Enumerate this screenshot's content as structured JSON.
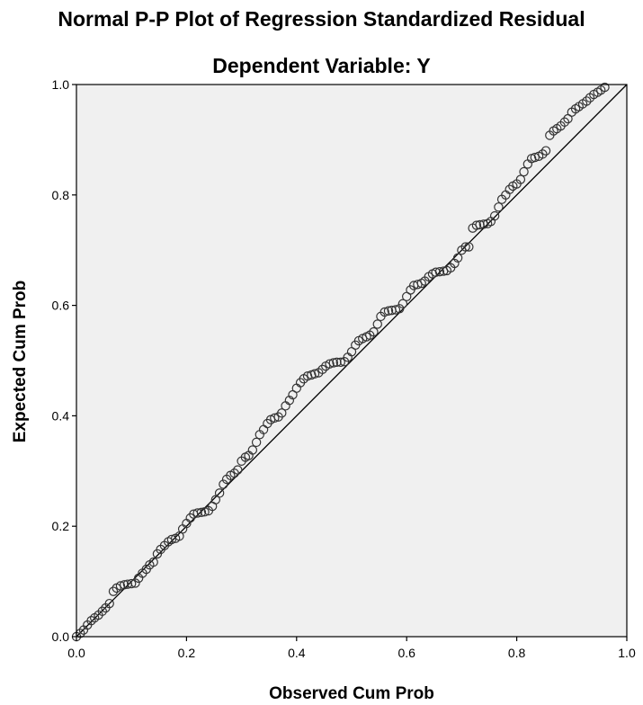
{
  "chart_data": {
    "type": "scatter",
    "title": "Normal P-P Plot of Regression Standardized Residual",
    "subtitle": "Dependent Variable: Y",
    "xlabel": "Observed Cum Prob",
    "ylabel": "Expected Cum Prob",
    "xlim": [
      0,
      1
    ],
    "ylim": [
      0,
      1
    ],
    "xticks": [
      0.0,
      0.2,
      0.4,
      0.6,
      0.8,
      1.0
    ],
    "yticks": [
      0.0,
      0.2,
      0.4,
      0.6,
      0.8,
      1.0
    ],
    "xtick_labels": [
      "0.0",
      "0.2",
      "0.4",
      "0.6",
      "0.8",
      "1.0"
    ],
    "ytick_labels": [
      "0.0",
      "0.2",
      "0.4",
      "0.6",
      "0.8",
      "1.0"
    ],
    "grid": false,
    "background_color": "#f0f0f0",
    "marker_color": "#333333",
    "line_color": "#000000",
    "reference_line": {
      "x": [
        0,
        1
      ],
      "y": [
        0,
        1
      ]
    },
    "points": [
      [
        0.0,
        0.0
      ],
      [
        0.007,
        0.006
      ],
      [
        0.013,
        0.012
      ],
      [
        0.02,
        0.021
      ],
      [
        0.027,
        0.029
      ],
      [
        0.033,
        0.034
      ],
      [
        0.04,
        0.039
      ],
      [
        0.047,
        0.046
      ],
      [
        0.053,
        0.052
      ],
      [
        0.06,
        0.06
      ],
      [
        0.067,
        0.082
      ],
      [
        0.073,
        0.088
      ],
      [
        0.08,
        0.092
      ],
      [
        0.087,
        0.094
      ],
      [
        0.093,
        0.095
      ],
      [
        0.1,
        0.096
      ],
      [
        0.107,
        0.097
      ],
      [
        0.113,
        0.106
      ],
      [
        0.12,
        0.115
      ],
      [
        0.127,
        0.122
      ],
      [
        0.133,
        0.13
      ],
      [
        0.14,
        0.135
      ],
      [
        0.147,
        0.15
      ],
      [
        0.153,
        0.158
      ],
      [
        0.16,
        0.165
      ],
      [
        0.167,
        0.172
      ],
      [
        0.173,
        0.176
      ],
      [
        0.18,
        0.178
      ],
      [
        0.187,
        0.182
      ],
      [
        0.193,
        0.195
      ],
      [
        0.2,
        0.205
      ],
      [
        0.207,
        0.215
      ],
      [
        0.213,
        0.222
      ],
      [
        0.22,
        0.224
      ],
      [
        0.227,
        0.225
      ],
      [
        0.233,
        0.226
      ],
      [
        0.24,
        0.228
      ],
      [
        0.247,
        0.236
      ],
      [
        0.253,
        0.248
      ],
      [
        0.26,
        0.26
      ],
      [
        0.267,
        0.276
      ],
      [
        0.273,
        0.285
      ],
      [
        0.28,
        0.292
      ],
      [
        0.287,
        0.296
      ],
      [
        0.293,
        0.302
      ],
      [
        0.3,
        0.318
      ],
      [
        0.307,
        0.325
      ],
      [
        0.313,
        0.328
      ],
      [
        0.32,
        0.338
      ],
      [
        0.327,
        0.352
      ],
      [
        0.333,
        0.366
      ],
      [
        0.34,
        0.375
      ],
      [
        0.347,
        0.386
      ],
      [
        0.353,
        0.393
      ],
      [
        0.36,
        0.396
      ],
      [
        0.367,
        0.398
      ],
      [
        0.373,
        0.405
      ],
      [
        0.38,
        0.418
      ],
      [
        0.387,
        0.428
      ],
      [
        0.393,
        0.438
      ],
      [
        0.4,
        0.45
      ],
      [
        0.407,
        0.46
      ],
      [
        0.413,
        0.467
      ],
      [
        0.42,
        0.472
      ],
      [
        0.427,
        0.474
      ],
      [
        0.433,
        0.476
      ],
      [
        0.44,
        0.478
      ],
      [
        0.447,
        0.484
      ],
      [
        0.453,
        0.49
      ],
      [
        0.46,
        0.494
      ],
      [
        0.467,
        0.496
      ],
      [
        0.473,
        0.497
      ],
      [
        0.48,
        0.497
      ],
      [
        0.487,
        0.498
      ],
      [
        0.493,
        0.506
      ],
      [
        0.5,
        0.516
      ],
      [
        0.507,
        0.528
      ],
      [
        0.513,
        0.536
      ],
      [
        0.52,
        0.54
      ],
      [
        0.527,
        0.543
      ],
      [
        0.533,
        0.546
      ],
      [
        0.54,
        0.552
      ],
      [
        0.547,
        0.566
      ],
      [
        0.553,
        0.58
      ],
      [
        0.56,
        0.588
      ],
      [
        0.567,
        0.59
      ],
      [
        0.573,
        0.591
      ],
      [
        0.58,
        0.592
      ],
      [
        0.587,
        0.594
      ],
      [
        0.593,
        0.603
      ],
      [
        0.6,
        0.616
      ],
      [
        0.607,
        0.628
      ],
      [
        0.613,
        0.636
      ],
      [
        0.62,
        0.638
      ],
      [
        0.627,
        0.64
      ],
      [
        0.633,
        0.644
      ],
      [
        0.64,
        0.652
      ],
      [
        0.647,
        0.657
      ],
      [
        0.653,
        0.66
      ],
      [
        0.66,
        0.661
      ],
      [
        0.667,
        0.662
      ],
      [
        0.673,
        0.663
      ],
      [
        0.68,
        0.668
      ],
      [
        0.687,
        0.676
      ],
      [
        0.693,
        0.686
      ],
      [
        0.7,
        0.7
      ],
      [
        0.707,
        0.706
      ],
      [
        0.713,
        0.706
      ],
      [
        0.72,
        0.74
      ],
      [
        0.727,
        0.745
      ],
      [
        0.733,
        0.746
      ],
      [
        0.74,
        0.747
      ],
      [
        0.747,
        0.748
      ],
      [
        0.753,
        0.752
      ],
      [
        0.76,
        0.762
      ],
      [
        0.767,
        0.778
      ],
      [
        0.773,
        0.792
      ],
      [
        0.78,
        0.8
      ],
      [
        0.787,
        0.81
      ],
      [
        0.793,
        0.816
      ],
      [
        0.8,
        0.82
      ],
      [
        0.807,
        0.828
      ],
      [
        0.813,
        0.842
      ],
      [
        0.82,
        0.856
      ],
      [
        0.827,
        0.866
      ],
      [
        0.833,
        0.868
      ],
      [
        0.84,
        0.87
      ],
      [
        0.847,
        0.874
      ],
      [
        0.853,
        0.88
      ],
      [
        0.86,
        0.908
      ],
      [
        0.867,
        0.916
      ],
      [
        0.873,
        0.92
      ],
      [
        0.88,
        0.925
      ],
      [
        0.887,
        0.932
      ],
      [
        0.893,
        0.938
      ],
      [
        0.9,
        0.95
      ],
      [
        0.907,
        0.956
      ],
      [
        0.913,
        0.96
      ],
      [
        0.92,
        0.965
      ],
      [
        0.927,
        0.97
      ],
      [
        0.933,
        0.976
      ],
      [
        0.94,
        0.982
      ],
      [
        0.947,
        0.986
      ],
      [
        0.953,
        0.99
      ],
      [
        0.96,
        0.995
      ]
    ]
  }
}
